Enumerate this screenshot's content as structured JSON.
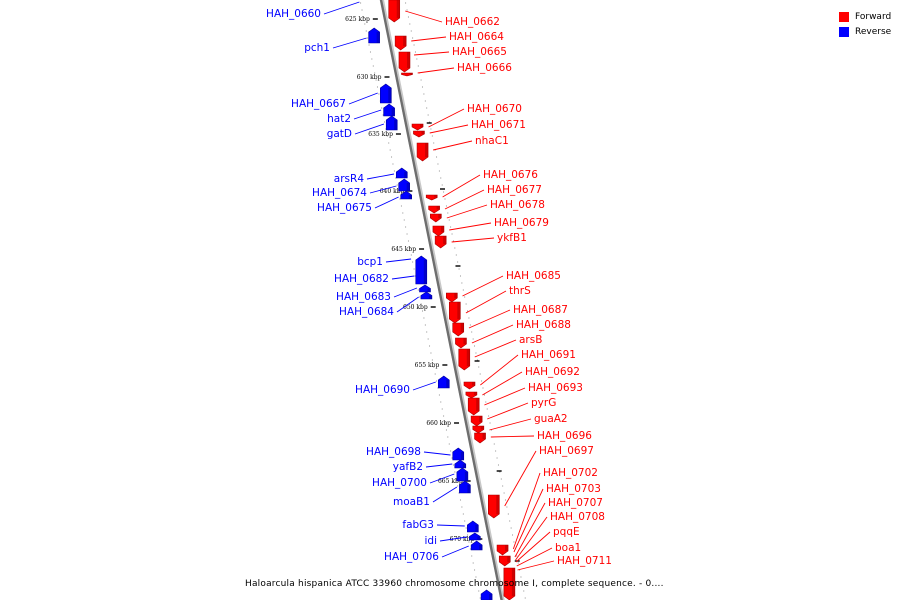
{
  "legend": {
    "forward_label": "Forward",
    "reverse_label": "Reverse",
    "forward_color": "#ff0000",
    "reverse_color": "#0000ff"
  },
  "caption": "Haloarcula hispanica ATCC 33960 chromosome chromosome I, complete sequence. - 0....",
  "ticks": [
    "625 kbp",
    "630 kbp",
    "635 kbp",
    "640 kbp",
    "645 kbp",
    "650 kbp",
    "655 kbp",
    "660 kbp",
    "665 kbp",
    "670 kbp"
  ],
  "genes_forward": [
    "HAH_0662",
    "HAH_0664",
    "HAH_0665",
    "HAH_0666",
    "HAH_0670",
    "HAH_0671",
    "nhaC1",
    "HAH_0676",
    "HAH_0677",
    "HAH_0678",
    "HAH_0679",
    "ykfB1",
    "HAH_0685",
    "thrS",
    "HAH_0687",
    "HAH_0688",
    "arsB",
    "HAH_0691",
    "HAH_0692",
    "HAH_0693",
    "pyrG",
    "guaA2",
    "HAH_0696",
    "HAH_0697",
    "HAH_0702",
    "HAH_0703",
    "HAH_0707",
    "HAH_0708",
    "pqqE",
    "boa1",
    "HAH_0711"
  ],
  "genes_reverse": [
    "HAH_0660",
    "pch1",
    "HAH_0667",
    "hat2",
    "gatD",
    "arsR4",
    "HAH_0674",
    "HAH_0675",
    "bcp1",
    "HAH_0682",
    "HAH_0683",
    "HAH_0684",
    "HAH_0690",
    "HAH_0698",
    "yafB2",
    "HAH_0700",
    "moaB1",
    "fabG3",
    "idi",
    "HAH_0706"
  ]
}
